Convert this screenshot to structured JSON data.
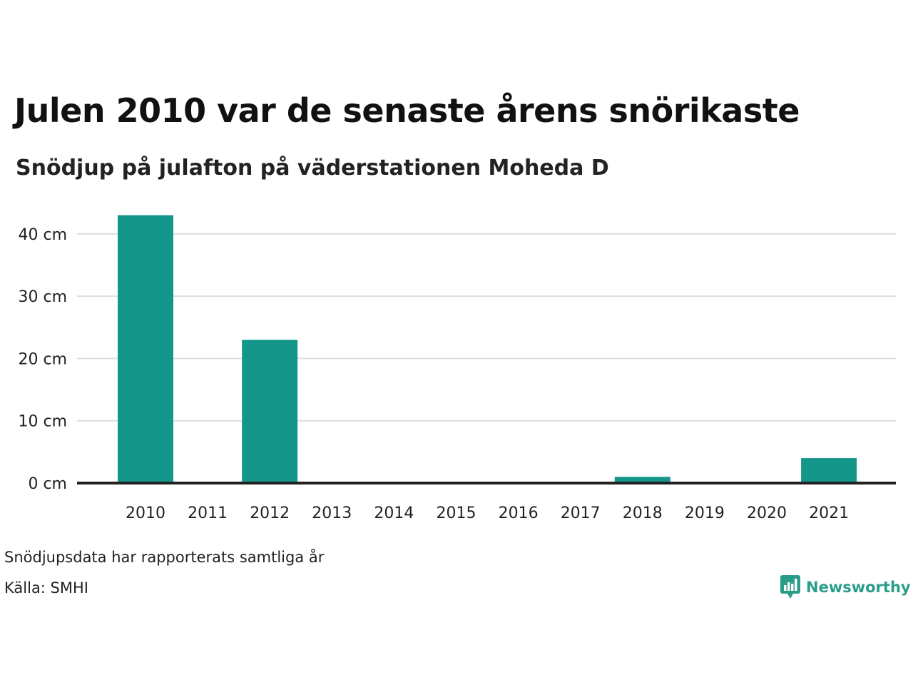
{
  "title": "Julen 2010 var de senaste årens snörikaste",
  "subtitle": "Snödjup på julafton på väderstationen Moheda D",
  "note": "Snödjupsdata har rapporterats samtliga år",
  "source": "Källa: SMHI",
  "brand": {
    "name": "Newsworthy",
    "icon": "newsworthy-logo-icon",
    "color": "#2a9d8a"
  },
  "colors": {
    "bar": "#14968a",
    "grid": "#dddddd",
    "baseline": "#222222"
  },
  "chart_data": {
    "type": "bar",
    "categories": [
      "2010",
      "2011",
      "2012",
      "2013",
      "2014",
      "2015",
      "2016",
      "2017",
      "2018",
      "2019",
      "2020",
      "2021"
    ],
    "values": [
      43,
      0,
      23,
      0,
      0,
      0,
      0,
      0,
      1,
      0,
      0,
      4
    ],
    "y_unit": "cm",
    "ylim": [
      0,
      40
    ],
    "y_ticks": [
      0,
      10,
      20,
      30,
      40
    ],
    "y_tick_labels": [
      "0 cm",
      "10 cm",
      "20 cm",
      "30 cm",
      "40 cm"
    ],
    "grid": true,
    "legend": "none"
  }
}
